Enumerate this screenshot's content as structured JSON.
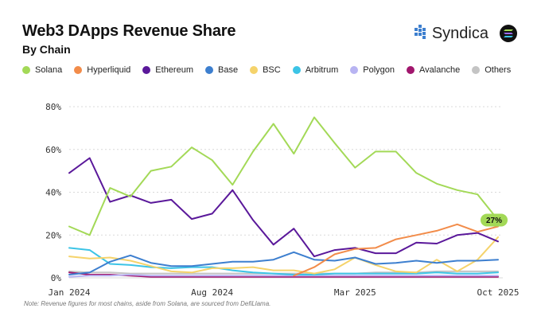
{
  "header": {
    "title": "Web3 DApps Revenue Share",
    "subtitle": "By Chain"
  },
  "brand": {
    "name": "Syndica",
    "logo_icon": "syndica-logo-icon",
    "badge_icon": "solana-icon"
  },
  "colors": {
    "Solana": "#a3d957",
    "Hyperliquid": "#f28c4a",
    "Ethereum": "#5a189a",
    "Base": "#3d7fcf",
    "BSC": "#f5d36b",
    "Arbitrum": "#3cc4e6",
    "Polygon": "#b8b4f2",
    "Avalanche": "#a1166d",
    "Others": "#c4c4c4"
  },
  "footnote": "Note: Revenue figures for most chains, aside from Solana, are sourced from DefiLlama.",
  "chart_data": {
    "type": "line",
    "title": "Web3 DApps Revenue Share",
    "subtitle": "By Chain",
    "xlabel": "",
    "ylabel": "",
    "ylim": [
      0,
      80
    ],
    "grid": "horizontal-dashed",
    "legend_position": "top",
    "yticks": [
      0,
      20,
      40,
      60,
      80
    ],
    "ytick_labels": [
      "0%",
      "20%",
      "40%",
      "60%",
      "80%"
    ],
    "xticks": [
      0,
      7,
      14,
      21
    ],
    "xtick_labels": [
      "Jan 2024",
      "Aug 2024",
      "Mar 2025",
      "Oct 2025"
    ],
    "x": [
      0,
      1,
      2,
      3,
      4,
      5,
      6,
      7,
      8,
      9,
      10,
      11,
      12,
      13,
      14,
      15,
      16,
      17,
      18,
      19,
      20,
      21
    ],
    "end_label": {
      "series": "Solana",
      "text": "27%"
    },
    "series": [
      {
        "name": "Solana",
        "values": [
          24,
          20,
          42,
          38,
          50,
          52,
          61,
          55,
          43.5,
          59,
          72,
          58,
          75,
          63,
          51.5,
          59,
          59,
          49,
          44,
          41,
          39,
          27
        ]
      },
      {
        "name": "Hyperliquid",
        "values": [
          null,
          null,
          null,
          null,
          null,
          null,
          null,
          null,
          null,
          null,
          null,
          1,
          5,
          11,
          13.5,
          14,
          18,
          20,
          22,
          25,
          21.5,
          24
        ]
      },
      {
        "name": "Ethereum",
        "values": [
          49,
          56,
          35.5,
          38.5,
          35,
          36.5,
          27.5,
          30,
          41,
          27,
          15.5,
          23,
          10,
          13,
          14,
          11.5,
          11.5,
          16.5,
          16,
          20,
          21,
          17
        ]
      },
      {
        "name": "Base",
        "values": [
          1.5,
          2.5,
          7.5,
          10.5,
          7,
          5.5,
          5.5,
          6.5,
          7.5,
          7.5,
          8.5,
          12,
          8.5,
          8,
          9.5,
          6.5,
          7,
          8,
          7,
          8,
          8,
          8.5
        ]
      },
      {
        "name": "BSC",
        "values": [
          10,
          9,
          9.5,
          8,
          5.5,
          3,
          2.5,
          4.5,
          4.5,
          5,
          3.5,
          3.5,
          2,
          4,
          9.5,
          6,
          3,
          2.5,
          8.5,
          3,
          8.5,
          19
        ]
      },
      {
        "name": "Arbitrum",
        "values": [
          14,
          13,
          6.5,
          6,
          5,
          4.5,
          5,
          5,
          3.5,
          2.5,
          2,
          1.5,
          1.5,
          2,
          2,
          2,
          2,
          2,
          2.5,
          2,
          2,
          2.5
        ]
      },
      {
        "name": "Polygon",
        "values": [
          0.5,
          1,
          1,
          1.5,
          1,
          1,
          1,
          1,
          1,
          1,
          1,
          1,
          1,
          1,
          1,
          1,
          1,
          1,
          1,
          1,
          1,
          1
        ]
      },
      {
        "name": "Avalanche",
        "values": [
          2.5,
          1.5,
          1.5,
          1,
          0.5,
          0.5,
          0.5,
          0.5,
          0.5,
          0.5,
          0.5,
          0.5,
          0.5,
          0.5,
          0.5,
          0.5,
          0.5,
          0.5,
          0.5,
          0.5,
          0.5,
          0.5
        ]
      },
      {
        "name": "Others",
        "values": [
          3,
          2.5,
          2.5,
          2,
          2,
          2,
          2,
          2,
          2,
          2,
          2,
          2,
          2,
          2,
          2,
          2.5,
          2.5,
          2.5,
          3,
          3,
          3,
          3
        ]
      }
    ]
  }
}
